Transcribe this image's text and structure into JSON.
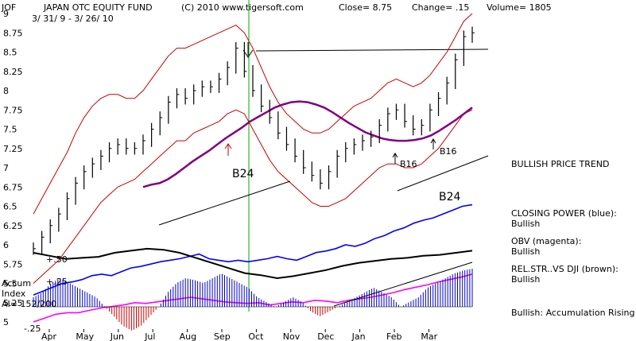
{
  "header": {
    "symbol": "JOF",
    "title": "JAPAN OTC EQUITY FUND",
    "copyright": "(C) 2010 www.tigersoft.com",
    "close": "Close=  8.75",
    "change": "Change= .15",
    "volume": "Volume= 1805",
    "date_range": "3/ 31/ 9 - 3/ 26/ 10"
  },
  "colors": {
    "price_bars": "#000000",
    "bands": "#cc0000",
    "ma": "#800080",
    "closing_power": "#0000ff",
    "obv": "#ff00ff",
    "rel_str": "#000000",
    "accum_pos": "#0000cc",
    "accum_neg": "#cc0000",
    "signal_line": "#00aa00"
  },
  "indicator_panel": {
    "label_line1": "Accum",
    "label_line2": "Index",
    "label_line3": "AI= 152/200",
    "plus50": "+.50",
    "plus25": "+.25",
    "minus25": "-.25"
  },
  "annotations": {
    "b24_top": "B24",
    "b24_right": "B24",
    "b16_upper": "B16",
    "b16_lower": "B16"
  },
  "side_labels": {
    "trend": "BULLISH PRICE TREND",
    "cp_title": "CLOSING POWER (blue):",
    "cp_value": "Bullish",
    "obv_title": "OBV (magenta):",
    "obv_value": "Bullish",
    "rs_title": "REL.STR..VS DJI (brown):",
    "rs_value": "Bullish",
    "accum_text": "Bullish: Accumulation Rising"
  },
  "chart_data": {
    "type": "line",
    "y_ticks": [
      "9",
      "8.75",
      "8.5",
      "8.25",
      "8",
      "7.75",
      "7.5",
      "7.25",
      "7",
      "6.75",
      "6.5",
      "6.25",
      "6",
      "5.75",
      "5.5",
      "5.25",
      "5"
    ],
    "months": [
      "Apr",
      "May",
      "Jun",
      "Jul",
      "Aug",
      "Sep",
      "Oct",
      "Nov",
      "Dec",
      "Jan",
      "Feb",
      "Mar"
    ],
    "ylim": [
      5,
      9
    ],
    "price_close": [
      5.95,
      6.1,
      6.25,
      6.4,
      6.6,
      6.8,
      6.95,
      7.05,
      7.15,
      7.25,
      7.3,
      7.25,
      7.25,
      7.35,
      7.5,
      7.65,
      7.85,
      7.95,
      7.9,
      8.0,
      8.05,
      8.05,
      8.15,
      8.3,
      8.55,
      8.25,
      8.0,
      7.8,
      7.65,
      7.45,
      7.3,
      7.15,
      7.0,
      6.9,
      6.8,
      6.95,
      7.15,
      7.25,
      7.3,
      7.35,
      7.4,
      7.55,
      7.7,
      7.75,
      7.6,
      7.5,
      7.55,
      7.75,
      7.9,
      8.1,
      8.4,
      8.7,
      8.75
    ],
    "upper_band": [
      6.4,
      6.6,
      6.8,
      7.0,
      7.2,
      7.45,
      7.65,
      7.8,
      7.9,
      7.95,
      7.95,
      7.9,
      7.9,
      8.0,
      8.15,
      8.3,
      8.45,
      8.55,
      8.55,
      8.6,
      8.65,
      8.7,
      8.75,
      8.8,
      8.85,
      8.75,
      8.55,
      8.3,
      8.05,
      7.85,
      7.7,
      7.6,
      7.5,
      7.45,
      7.45,
      7.5,
      7.6,
      7.7,
      7.8,
      7.85,
      7.9,
      8.0,
      8.1,
      8.15,
      8.1,
      8.05,
      8.1,
      8.2,
      8.35,
      8.5,
      8.7,
      8.9,
      9.0
    ],
    "lower_band": [
      5.5,
      5.6,
      5.7,
      5.8,
      5.95,
      6.1,
      6.25,
      6.4,
      6.55,
      6.65,
      6.75,
      6.8,
      6.85,
      6.95,
      7.05,
      7.15,
      7.25,
      7.35,
      7.35,
      7.45,
      7.5,
      7.55,
      7.6,
      7.7,
      7.75,
      7.7,
      7.5,
      7.3,
      7.1,
      6.95,
      6.85,
      6.75,
      6.65,
      6.55,
      6.5,
      6.5,
      6.55,
      6.6,
      6.7,
      6.8,
      6.9,
      7.0,
      7.05,
      7.05,
      7.0,
      7.0,
      7.05,
      7.15,
      7.25,
      7.4,
      7.55,
      7.7,
      7.75
    ],
    "ma": [
      6.75,
      6.78,
      6.8,
      6.85,
      6.92,
      7.0,
      7.08,
      7.15,
      7.22,
      7.3,
      7.38,
      7.45,
      7.52,
      7.6,
      7.66,
      7.72,
      7.78,
      7.82,
      7.85,
      7.86,
      7.85,
      7.82,
      7.78,
      7.72,
      7.65,
      7.58,
      7.52,
      7.46,
      7.42,
      7.38,
      7.36,
      7.35,
      7.35,
      7.36,
      7.38,
      7.42,
      7.48,
      7.55,
      7.62,
      7.7,
      7.78
    ],
    "closing_power": [
      5.35,
      5.4,
      5.45,
      5.5,
      5.52,
      5.55,
      5.6,
      5.62,
      5.6,
      5.65,
      5.7,
      5.72,
      5.75,
      5.78,
      5.8,
      5.82,
      5.85,
      5.88,
      5.82,
      5.8,
      5.78,
      5.8,
      5.78,
      5.8,
      5.82,
      5.85,
      5.82,
      5.8,
      5.85,
      5.9,
      5.92,
      5.95,
      6.0,
      5.98,
      6.02,
      6.08,
      6.12,
      6.18,
      6.22,
      6.28,
      6.32,
      6.35,
      6.4,
      6.45,
      6.5,
      6.52
    ],
    "obv": [
      5.0,
      5.05,
      5.1,
      5.12,
      5.12,
      5.15,
      5.18,
      5.2,
      5.22,
      5.25,
      5.24,
      5.26,
      5.28,
      5.3,
      5.32,
      5.3,
      5.28,
      5.26,
      5.25,
      5.24,
      5.25,
      5.22,
      5.24,
      5.26,
      5.25,
      5.28,
      5.27,
      5.25,
      5.28,
      5.3,
      5.32,
      5.35,
      5.38,
      5.42,
      5.45,
      5.48,
      5.52,
      5.55,
      5.58,
      5.62
    ],
    "rel_str": [
      0.5,
      0.47,
      0.44,
      0.45,
      0.46,
      0.5,
      0.52,
      0.54,
      0.53,
      0.5,
      0.45,
      0.4,
      0.35,
      0.3,
      0.28,
      0.25,
      0.27,
      0.3,
      0.33,
      0.37,
      0.4,
      0.42,
      0.44,
      0.45,
      0.47,
      0.48,
      0.5,
      0.52
    ],
    "accum_index": [
      0.1,
      0.15,
      0.25,
      0.3,
      0.25,
      0.2,
      0.15,
      0.1,
      0.0,
      -0.1,
      -0.2,
      -0.25,
      -0.2,
      -0.1,
      0.0,
      0.15,
      0.25,
      0.3,
      0.28,
      0.25,
      0.3,
      0.35,
      0.3,
      0.25,
      0.2,
      0.1,
      0.05,
      0.0,
      0.05,
      0.1,
      0.05,
      -0.05,
      -0.1,
      -0.05,
      0.0,
      0.05,
      0.1,
      0.15,
      0.2,
      0.15,
      0.1,
      0.0,
      0.05,
      0.1,
      0.2,
      0.25,
      0.3,
      0.35,
      0.38,
      0.4
    ]
  }
}
